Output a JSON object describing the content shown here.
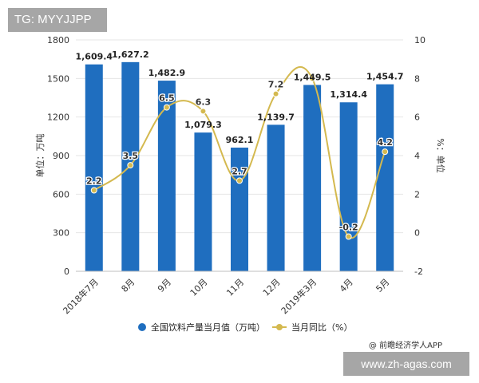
{
  "tag": {
    "text": "TG: MYYJJPP"
  },
  "watermark_url": {
    "text": "www.zh-agas.com"
  },
  "source": {
    "text": "@ 前瞻经济学人APP"
  },
  "colors": {
    "bar": "#1f6ebf",
    "line": "#d4b94f",
    "point": "#d4b94f",
    "grid": "#e6e6e6",
    "axis_text": "#333333"
  },
  "chart_data": {
    "type": "bar+line",
    "categories": [
      "2018年7月",
      "8月",
      "9月",
      "10月",
      "11月",
      "12月",
      "2019年3月",
      "4月",
      "5月"
    ],
    "series": [
      {
        "name": "全国饮料产量当月值（万吨）",
        "type": "bar",
        "axis": "left",
        "values": [
          1609.4,
          1627.2,
          1482.9,
          1079.3,
          962.1,
          1139.7,
          1449.5,
          1314.4,
          1454.7
        ],
        "labels": [
          "1,609.4",
          "1,627.2",
          "1,482.9",
          "1,079.3",
          "962.1",
          "1,139.7",
          "1,449.5",
          "1,314.4",
          "1,454.7"
        ]
      },
      {
        "name": "当月同比（%）",
        "type": "line",
        "axis": "right",
        "values": [
          2.2,
          3.5,
          6.5,
          6.3,
          2.7,
          7.2,
          8.0,
          -0.2,
          4.2
        ],
        "labels": [
          "2.2",
          "3.5",
          "6.5",
          "6.3",
          "2.7",
          "7.2",
          "",
          "-0.2",
          "4.2"
        ]
      }
    ],
    "ylabel_left": "单位：万吨",
    "ylabel_right": "%：单位",
    "ylim_left": [
      0,
      1800
    ],
    "yticks_left": [
      0,
      300,
      600,
      900,
      1200,
      1500,
      1800
    ],
    "ylim_right": [
      -2,
      10
    ],
    "yticks_right": [
      -2,
      0,
      2,
      4,
      6,
      8,
      10
    ],
    "grid": true,
    "legend_position": "bottom"
  }
}
